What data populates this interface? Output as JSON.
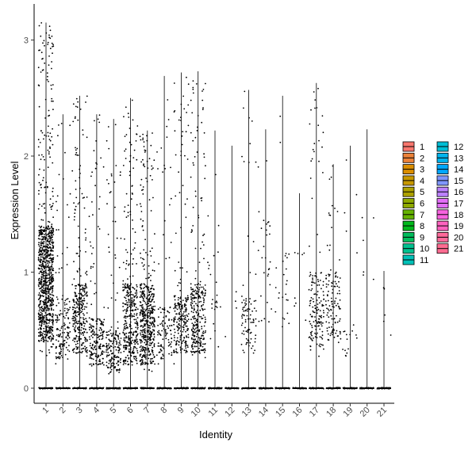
{
  "chart_data": {
    "type": "violin-jitter",
    "title": "",
    "xlabel": "Identity",
    "ylabel": "Expression Level",
    "ylim": [
      -0.13,
      3.35
    ],
    "yticks": [
      0,
      1,
      2,
      3
    ],
    "grid": false,
    "legend_position": "right",
    "legend_columns": 2,
    "categories": [
      "1",
      "2",
      "3",
      "4",
      "5",
      "6",
      "7",
      "8",
      "9",
      "10",
      "11",
      "12",
      "13",
      "14",
      "15",
      "16",
      "17",
      "18",
      "19",
      "20",
      "21"
    ],
    "series": [
      {
        "name": "1",
        "color": "#F8766D",
        "max": 3.15,
        "dense_low": 0.4,
        "dense_high": 1.4,
        "n_points": 950
      },
      {
        "name": "2",
        "color": "#EC8239",
        "max": 2.36,
        "dense_low": 0.25,
        "dense_high": 0.8,
        "n_points": 150
      },
      {
        "name": "3",
        "color": "#DB8E00",
        "max": 2.52,
        "dense_low": 0.3,
        "dense_high": 0.9,
        "n_points": 330
      },
      {
        "name": "4",
        "color": "#C79800",
        "max": 2.36,
        "dense_low": 0.2,
        "dense_high": 0.6,
        "n_points": 200
      },
      {
        "name": "5",
        "color": "#AEA200",
        "max": 2.32,
        "dense_low": 0.15,
        "dense_high": 0.5,
        "n_points": 180
      },
      {
        "name": "6",
        "color": "#8FAA00",
        "max": 2.5,
        "dense_low": 0.2,
        "dense_high": 0.9,
        "n_points": 380
      },
      {
        "name": "7",
        "color": "#64B200",
        "max": 2.22,
        "dense_low": 0.2,
        "dense_high": 0.9,
        "n_points": 500
      },
      {
        "name": "8",
        "color": "#00B81B",
        "max": 2.69,
        "dense_low": 0.25,
        "dense_high": 0.7,
        "n_points": 110
      },
      {
        "name": "9",
        "color": "#00BD5C",
        "max": 2.72,
        "dense_low": 0.3,
        "dense_high": 0.8,
        "n_points": 240
      },
      {
        "name": "10",
        "color": "#00C08E",
        "max": 2.73,
        "dense_low": 0.3,
        "dense_high": 0.9,
        "n_points": 300
      },
      {
        "name": "11",
        "color": "#00C1B7",
        "max": 2.22,
        "dense_low": 0.3,
        "dense_high": 1.2,
        "n_points": 25
      },
      {
        "name": "12",
        "color": "#00BDD4",
        "max": 2.09,
        "dense_low": 0.4,
        "dense_high": 1.2,
        "n_points": 4
      },
      {
        "name": "13",
        "color": "#00B5EE",
        "max": 2.57,
        "dense_low": 0.3,
        "dense_high": 0.8,
        "n_points": 90
      },
      {
        "name": "14",
        "color": "#00A7FF",
        "max": 2.23,
        "dense_low": 0.5,
        "dense_high": 1.5,
        "n_points": 30
      },
      {
        "name": "15",
        "color": "#7F96FF",
        "max": 2.52,
        "dense_low": 0.5,
        "dense_high": 1.2,
        "n_points": 25
      },
      {
        "name": "16",
        "color": "#BC81FF",
        "max": 1.68,
        "dense_low": 0.5,
        "dense_high": 1.2,
        "n_points": 8
      },
      {
        "name": "17",
        "color": "#E26EF7",
        "max": 2.63,
        "dense_low": 0.35,
        "dense_high": 1.0,
        "n_points": 160
      },
      {
        "name": "18",
        "color": "#F863DF",
        "max": 1.93,
        "dense_low": 0.4,
        "dense_high": 1.0,
        "n_points": 120
      },
      {
        "name": "19",
        "color": "#FF62BF",
        "max": 2.09,
        "dense_low": 0.25,
        "dense_high": 0.5,
        "n_points": 20
      },
      {
        "name": "20",
        "color": "#FF6A9A",
        "max": 2.23,
        "dense_low": 0.6,
        "dense_high": 1.5,
        "n_points": 6
      },
      {
        "name": "21",
        "color": "#FF6C91",
        "max": 1.01,
        "dense_low": 0.4,
        "dense_high": 0.9,
        "n_points": 6
      }
    ]
  }
}
